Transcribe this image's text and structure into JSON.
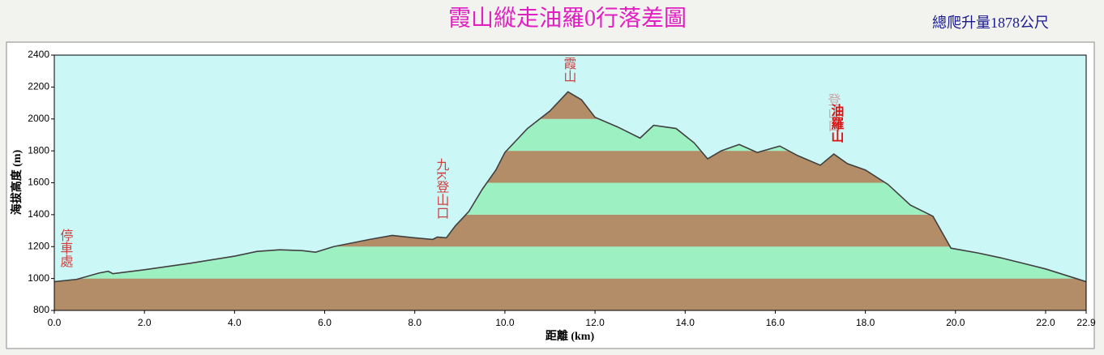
{
  "chart_data": {
    "type": "area",
    "title": "霞山縱走油羅0行落差圖",
    "subtitle": "總爬升量1878公尺",
    "y_label": "海拔高度 (m)",
    "x_label": "距離 (km)",
    "annotations": [
      "停車處",
      "九K登山口",
      "霞山",
      "登山口",
      "油羅山"
    ],
    "x": [
      0,
      0.5,
      1.0,
      1.2,
      1.3,
      2.0,
      3.0,
      4.0,
      4.5,
      5.0,
      5.5,
      5.8,
      6.2,
      7.0,
      7.5,
      8.0,
      8.4,
      8.5,
      8.7,
      8.9,
      9.2,
      9.5,
      9.8,
      10.0,
      10.5,
      11.0,
      11.4,
      11.7,
      12.0,
      12.5,
      13.0,
      13.3,
      13.8,
      14.2,
      14.5,
      14.8,
      15.2,
      15.6,
      16.1,
      16.5,
      17.0,
      17.3,
      17.6,
      18.0,
      18.5,
      19.0,
      19.5,
      19.9,
      20.5,
      21.0,
      22.0,
      22.9
    ],
    "values": [
      980,
      995,
      1035,
      1045,
      1030,
      1055,
      1095,
      1140,
      1170,
      1180,
      1175,
      1165,
      1200,
      1245,
      1270,
      1255,
      1245,
      1260,
      1255,
      1330,
      1420,
      1560,
      1680,
      1790,
      1940,
      2050,
      2170,
      2120,
      2010,
      1950,
      1880,
      1960,
      1940,
      1850,
      1750,
      1800,
      1840,
      1790,
      1830,
      1770,
      1710,
      1780,
      1720,
      1680,
      1590,
      1460,
      1390,
      1190,
      1160,
      1130,
      1060,
      980
    ],
    "line_color": "#404040",
    "band_colors": [
      "#b38d68",
      "#9df0c2"
    ],
    "background": "#ccf7f7",
    "xlim": [
      0,
      22.9
    ],
    "xticks": [
      {
        "value": 0,
        "label": "0.0"
      },
      {
        "value": 2,
        "label": "2.0"
      },
      {
        "value": 4,
        "label": "4.0"
      },
      {
        "value": 6,
        "label": "6.0"
      },
      {
        "value": 8,
        "label": "8.0"
      },
      {
        "value": 10,
        "label": "10.0"
      },
      {
        "value": 12,
        "label": "12.0"
      },
      {
        "value": 14,
        "label": "14.0"
      },
      {
        "value": 16,
        "label": "16.0"
      },
      {
        "value": 18,
        "label": "18.0"
      },
      {
        "value": 20,
        "label": "20.0"
      },
      {
        "value": 22,
        "label": "22.0"
      },
      22.9
    ],
    "ylim": [
      800,
      2400
    ],
    "yticks": [
      800,
      1000,
      1200,
      1400,
      1600,
      1800,
      2000,
      2200,
      2400
    ]
  }
}
